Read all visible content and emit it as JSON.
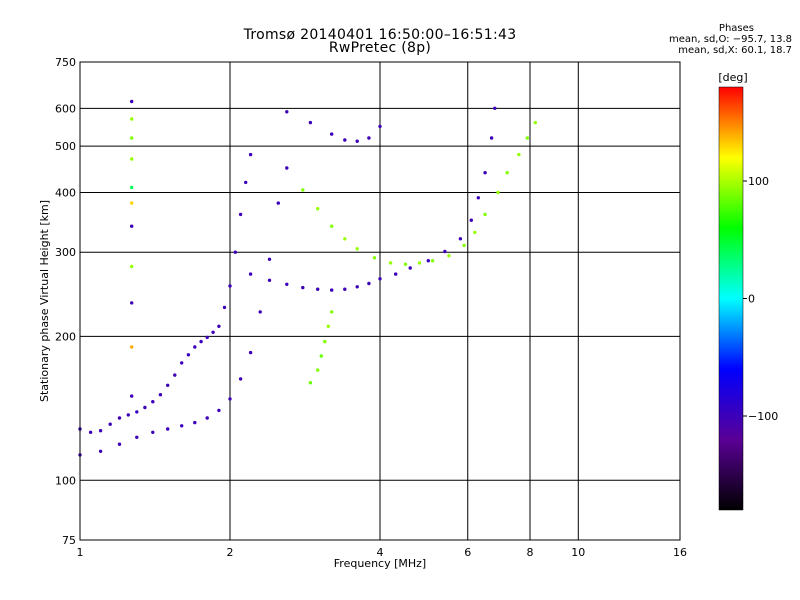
{
  "header": {
    "title_line1": "Tromsø 20140401 16:50:00–16:51:43",
    "title_line2": "RwPretec (8p)"
  },
  "phase_stats": {
    "heading": "Phases",
    "line_o": "mean, sd,O: −95.7, 13.8",
    "line_x": "mean, sd,X: 60.1, 18.7"
  },
  "colorbar": {
    "unit_label": "[deg]",
    "ticks": [
      {
        "value": 100,
        "label": "100"
      },
      {
        "value": 0,
        "label": "0"
      },
      {
        "value": -100,
        "label": "−100"
      }
    ],
    "range": [
      -180,
      180
    ],
    "stops": [
      "#000000",
      "#5a0096",
      "#0000ff",
      "#00ffff",
      "#00ff00",
      "#ffff00",
      "#ff0000"
    ]
  },
  "chart_data": {
    "type": "scatter",
    "title": "Tromsø 20140401 16:50:00–16:51:43",
    "subtitle": "RwPretec (8p)",
    "xlabel": "Frequency [MHz]",
    "ylabel": "Stationary phase Virtual Height [km]",
    "xscale": "log",
    "yscale": "log",
    "xlim": [
      1,
      16
    ],
    "ylim": [
      75,
      750
    ],
    "xticks": [
      {
        "value": 1,
        "label": "1"
      },
      {
        "value": 2,
        "label": "2"
      },
      {
        "value": 4,
        "label": "4"
      },
      {
        "value": 6,
        "label": "6"
      },
      {
        "value": 8,
        "label": "8"
      },
      {
        "value": 10,
        "label": "10"
      },
      {
        "value": 16,
        "label": "16"
      }
    ],
    "yticks": [
      {
        "value": 75,
        "label": "75"
      },
      {
        "value": 100,
        "label": "100"
      },
      {
        "value": 200,
        "label": "200"
      },
      {
        "value": 300,
        "label": "300"
      },
      {
        "value": 400,
        "label": "400"
      },
      {
        "value": 500,
        "label": "500"
      },
      {
        "value": 600,
        "label": "600"
      },
      {
        "value": 750,
        "label": "750"
      }
    ],
    "grid": true,
    "color_by": "phase [deg]",
    "series": [
      {
        "points_f_h_phase": [
          [
            1.0,
            128,
            -100
          ],
          [
            1.05,
            126,
            -100
          ],
          [
            1.1,
            127,
            -100
          ],
          [
            1.15,
            131,
            -100
          ],
          [
            1.2,
            135,
            -105
          ],
          [
            1.25,
            137,
            -100
          ],
          [
            1.3,
            139,
            -95
          ],
          [
            1.35,
            142,
            -100
          ],
          [
            1.4,
            146,
            -100
          ],
          [
            1.45,
            151,
            -100
          ],
          [
            1.5,
            158,
            -100
          ],
          [
            1.55,
            166,
            -100
          ],
          [
            1.6,
            176,
            -100
          ],
          [
            1.65,
            183,
            -95
          ],
          [
            1.7,
            190,
            -100
          ],
          [
            1.75,
            195,
            -100
          ],
          [
            1.8,
            199,
            -100
          ],
          [
            1.85,
            204,
            -100
          ],
          [
            1.9,
            210,
            -100
          ],
          [
            1.95,
            230,
            -100
          ],
          [
            2.0,
            255,
            -100
          ],
          [
            2.05,
            300,
            -100
          ],
          [
            2.1,
            360,
            -100
          ],
          [
            2.15,
            420,
            -100
          ],
          [
            2.2,
            480,
            -100
          ]
        ]
      },
      {
        "points_f_h_phase": [
          [
            1.0,
            113,
            -100
          ],
          [
            1.1,
            115,
            -100
          ],
          [
            1.2,
            119,
            -100
          ],
          [
            1.3,
            123,
            -100
          ],
          [
            1.4,
            126,
            -100
          ],
          [
            1.5,
            128,
            -100
          ],
          [
            1.6,
            130,
            -100
          ],
          [
            1.7,
            132,
            -100
          ],
          [
            1.8,
            135,
            -100
          ],
          [
            1.9,
            140,
            -100
          ],
          [
            2.0,
            148,
            -100
          ],
          [
            2.1,
            163,
            -100
          ],
          [
            2.2,
            185,
            -100
          ],
          [
            2.3,
            225,
            -100
          ],
          [
            2.4,
            290,
            -100
          ],
          [
            2.5,
            380,
            -100
          ],
          [
            2.6,
            450,
            -100
          ]
        ]
      },
      {
        "points_f_h_phase": [
          [
            2.2,
            270,
            -100
          ],
          [
            2.4,
            262,
            -100
          ],
          [
            2.6,
            257,
            -100
          ],
          [
            2.8,
            253,
            -100
          ],
          [
            3.0,
            251,
            -100
          ],
          [
            3.2,
            250,
            -100
          ],
          [
            3.4,
            251,
            -100
          ],
          [
            3.6,
            254,
            -100
          ],
          [
            3.8,
            258,
            -100
          ],
          [
            4.0,
            264,
            -100
          ],
          [
            4.3,
            270,
            -100
          ],
          [
            4.6,
            278,
            -100
          ],
          [
            5.0,
            288,
            -100
          ],
          [
            5.4,
            301,
            -100
          ],
          [
            5.8,
            320,
            -100
          ],
          [
            6.1,
            350,
            -100
          ],
          [
            6.3,
            390,
            -100
          ],
          [
            6.5,
            440,
            -100
          ],
          [
            6.7,
            520,
            -100
          ],
          [
            6.8,
            600,
            -100
          ]
        ]
      },
      {
        "points_f_h_phase": [
          [
            2.6,
            590,
            -100
          ],
          [
            2.9,
            560,
            -100
          ],
          [
            3.2,
            530,
            -100
          ],
          [
            3.4,
            515,
            -100
          ],
          [
            3.6,
            512,
            -100
          ],
          [
            3.8,
            520,
            -100
          ],
          [
            4.0,
            550,
            -100
          ]
        ]
      },
      {
        "points_f_h_phase": [
          [
            2.8,
            405,
            90
          ],
          [
            3.0,
            370,
            95
          ],
          [
            3.2,
            340,
            90
          ],
          [
            3.4,
            320,
            95
          ],
          [
            3.6,
            305,
            95
          ],
          [
            3.9,
            292,
            90
          ],
          [
            4.2,
            285,
            95
          ],
          [
            4.5,
            283,
            90
          ],
          [
            4.8,
            285,
            95
          ],
          [
            5.1,
            288,
            90
          ],
          [
            5.5,
            295,
            95
          ],
          [
            5.9,
            310,
            90
          ],
          [
            6.2,
            330,
            95
          ],
          [
            6.5,
            360,
            90
          ],
          [
            6.9,
            400,
            95
          ],
          [
            7.2,
            440,
            90
          ],
          [
            7.6,
            480,
            95
          ],
          [
            7.9,
            520,
            90
          ],
          [
            8.2,
            560,
            95
          ]
        ]
      },
      {
        "points_f_h_phase": [
          [
            2.9,
            160,
            85
          ],
          [
            3.0,
            170,
            90
          ],
          [
            3.05,
            182,
            85
          ],
          [
            3.1,
            195,
            90
          ],
          [
            3.15,
            210,
            95
          ],
          [
            3.2,
            225,
            90
          ]
        ]
      },
      {
        "points_f_h_phase": [
          [
            1.27,
            620,
            -100
          ],
          [
            1.27,
            570,
            95
          ],
          [
            1.27,
            520,
            90
          ],
          [
            1.27,
            470,
            95
          ],
          [
            1.27,
            410,
            40
          ],
          [
            1.27,
            380,
            130
          ],
          [
            1.27,
            340,
            -100
          ],
          [
            1.27,
            280,
            95
          ],
          [
            1.27,
            235,
            -100
          ],
          [
            1.27,
            190,
            140
          ],
          [
            1.27,
            150,
            -100
          ]
        ]
      }
    ]
  }
}
